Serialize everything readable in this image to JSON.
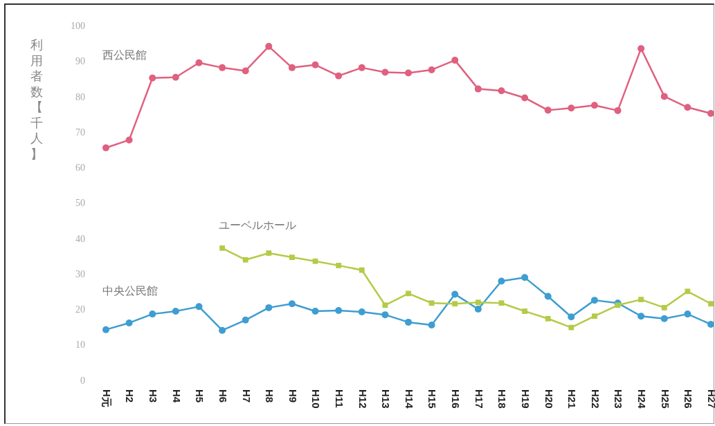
{
  "chart_data": {
    "type": "line",
    "ylabel": "利用者数【千人】",
    "categories": [
      "H元",
      "H2",
      "H3",
      "H4",
      "H5",
      "H6",
      "H7",
      "H8",
      "H9",
      "H10",
      "H11",
      "H12",
      "H13",
      "H14",
      "H15",
      "H16",
      "H17",
      "H18",
      "H19",
      "H20",
      "H21",
      "H22",
      "H23",
      "H24",
      "H25",
      "H26",
      "H27"
    ],
    "ylim": [
      0,
      100
    ],
    "yticks": [
      0,
      10,
      20,
      30,
      40,
      50,
      60,
      70,
      80,
      90,
      100
    ],
    "grid": false,
    "series": [
      {
        "name": "西公民館",
        "color": "#e0607f",
        "marker": "circle",
        "values": [
          65.8,
          68.0,
          85.5,
          85.7,
          89.8,
          88.4,
          87.5,
          94.4,
          88.4,
          89.2,
          86.1,
          88.4,
          87.1,
          86.9,
          87.8,
          90.5,
          82.4,
          81.9,
          79.9,
          76.4,
          77.0,
          77.8,
          76.3,
          93.8,
          80.3,
          77.2,
          75.5
        ]
      },
      {
        "name": "ユーベルホール",
        "color": "#b3cb46",
        "marker": "square",
        "values": [
          null,
          null,
          null,
          null,
          null,
          37.5,
          34.2,
          36.1,
          34.9,
          33.8,
          32.6,
          31.3,
          21.4,
          24.7,
          22.0,
          21.8,
          22.2,
          22.0,
          19.7,
          17.6,
          15.1,
          18.3,
          21.4,
          23.0,
          20.7,
          25.3,
          21.8
        ]
      },
      {
        "name": "中央公民館",
        "color": "#3e9dd1",
        "marker": "circle",
        "values": [
          14.5,
          16.4,
          18.9,
          19.7,
          21.0,
          14.3,
          17.2,
          20.7,
          21.8,
          19.7,
          19.9,
          19.5,
          18.7,
          16.6,
          15.8,
          24.5,
          20.3,
          28.2,
          29.2,
          23.9,
          18.1,
          22.8,
          22.0,
          18.3,
          17.6,
          18.9,
          16.0
        ]
      }
    ]
  }
}
